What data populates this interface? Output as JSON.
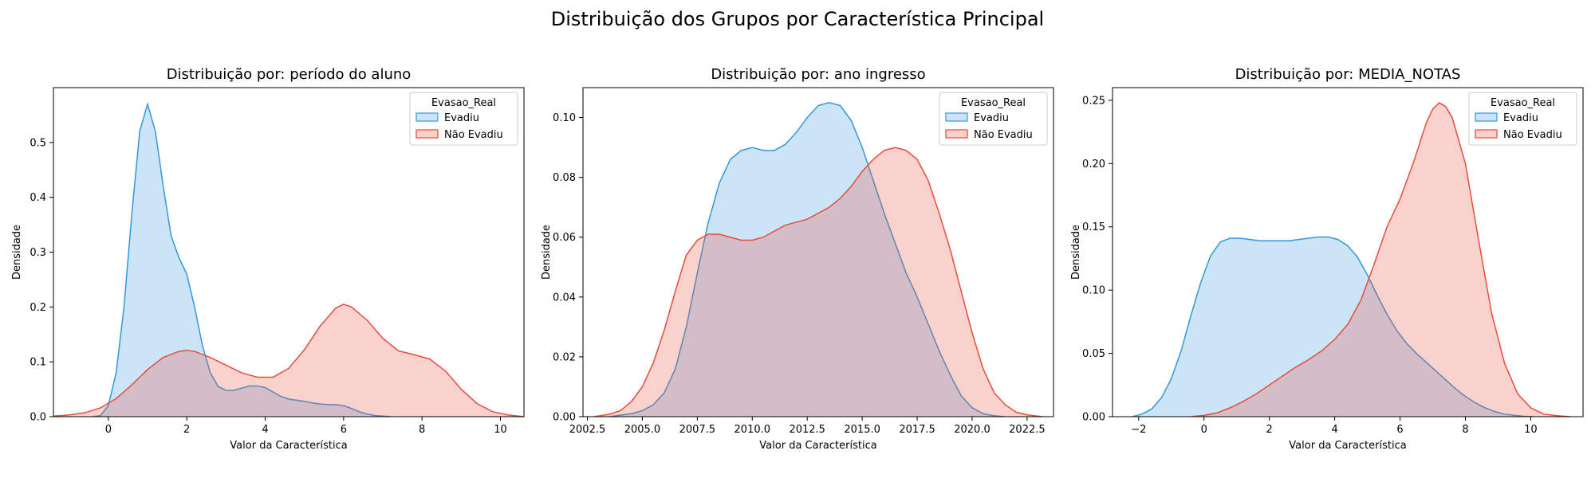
{
  "figure": {
    "suptitle": "Distribuição dos Grupos por Característica Principal",
    "colors": {
      "Evadiu": "#3498db",
      "Não Evadiu": "#e74c3c",
      "overlap": "#c3bfcc"
    }
  },
  "chart_data": [
    {
      "type": "area",
      "title": "Distribuição por: período do aluno",
      "xlabel": "Valor da Característica",
      "ylabel": "Densidade",
      "xlim": [
        -1.4,
        10.6
      ],
      "ylim": [
        0,
        0.6
      ],
      "xticks": [
        0,
        2,
        4,
        6,
        8,
        10
      ],
      "xtick_labels": [
        "0",
        "2",
        "4",
        "6",
        "8",
        "10"
      ],
      "yticks": [
        0,
        0.1,
        0.2,
        0.3,
        0.4,
        0.5
      ],
      "ytick_labels": [
        "0.0",
        "0.1",
        "0.2",
        "0.3",
        "0.4",
        "0.5"
      ],
      "legend": {
        "title": "Evasao_Real",
        "position": "upper right"
      },
      "series": [
        {
          "name": "Evadiu",
          "x": [
            -0.4,
            -0.2,
            0,
            0.2,
            0.4,
            0.6,
            0.8,
            1.0,
            1.2,
            1.4,
            1.6,
            1.8,
            2.0,
            2.2,
            2.4,
            2.6,
            2.8,
            3.0,
            3.2,
            3.4,
            3.6,
            3.8,
            4.0,
            4.2,
            4.4,
            4.6,
            4.8,
            5.0,
            5.2,
            5.4,
            5.6,
            5.8,
            6.0,
            6.2,
            6.4,
            6.6,
            6.8,
            7.0,
            7.2
          ],
          "y": [
            0.0,
            0.002,
            0.02,
            0.08,
            0.2,
            0.37,
            0.52,
            0.57,
            0.52,
            0.42,
            0.33,
            0.29,
            0.26,
            0.2,
            0.13,
            0.08,
            0.055,
            0.048,
            0.048,
            0.052,
            0.056,
            0.056,
            0.053,
            0.045,
            0.037,
            0.032,
            0.03,
            0.028,
            0.025,
            0.023,
            0.022,
            0.022,
            0.02,
            0.015,
            0.009,
            0.005,
            0.002,
            0.001,
            0.0
          ]
        },
        {
          "name": "Não Evadiu",
          "x": [
            -1.4,
            -1.0,
            -0.6,
            -0.2,
            0.2,
            0.6,
            1.0,
            1.4,
            1.8,
            2.0,
            2.2,
            2.6,
            3.0,
            3.4,
            3.8,
            4.2,
            4.6,
            5.0,
            5.4,
            5.8,
            6.0,
            6.2,
            6.6,
            7.0,
            7.4,
            7.8,
            8.2,
            8.6,
            9.0,
            9.4,
            9.8,
            10.2,
            10.6
          ],
          "y": [
            0.001,
            0.003,
            0.007,
            0.016,
            0.033,
            0.058,
            0.086,
            0.108,
            0.119,
            0.121,
            0.119,
            0.108,
            0.094,
            0.08,
            0.072,
            0.072,
            0.088,
            0.122,
            0.165,
            0.198,
            0.205,
            0.2,
            0.176,
            0.143,
            0.12,
            0.113,
            0.105,
            0.083,
            0.05,
            0.024,
            0.009,
            0.003,
            0.0
          ]
        }
      ]
    },
    {
      "type": "area",
      "title": "Distribuição por: ano ingresso",
      "xlabel": "Valor da Característica",
      "ylabel": "Densidade",
      "xlim": [
        2002.3,
        2023.7
      ],
      "ylim": [
        0,
        0.11
      ],
      "xticks": [
        2002.5,
        2005,
        2007.5,
        2010,
        2012.5,
        2015,
        2017.5,
        2020,
        2022.5
      ],
      "xtick_labels": [
        "2002.5",
        "2005.0",
        "2007.5",
        "2010.0",
        "2012.5",
        "2015.0",
        "2017.5",
        "2020.0",
        "2022.5"
      ],
      "yticks": [
        0,
        0.02,
        0.04,
        0.06,
        0.08,
        0.1
      ],
      "ytick_labels": [
        "0.00",
        "0.02",
        "0.04",
        "0.06",
        "0.08",
        "0.10"
      ],
      "legend": {
        "title": "Evasao_Real",
        "position": "upper right"
      },
      "series": [
        {
          "name": "Evadiu",
          "x": [
            2003.5,
            2004,
            2004.5,
            2005,
            2005.5,
            2006,
            2006.5,
            2007,
            2007.5,
            2008,
            2008.5,
            2009,
            2009.5,
            2010,
            2010.5,
            2011,
            2011.5,
            2012,
            2012.5,
            2013,
            2013.5,
            2014,
            2014.5,
            2015,
            2015.5,
            2016,
            2016.5,
            2017,
            2017.5,
            2018,
            2018.5,
            2019,
            2019.5,
            2020,
            2020.5,
            2021,
            2021.5
          ],
          "y": [
            0.0,
            0.0005,
            0.001,
            0.002,
            0.004,
            0.008,
            0.016,
            0.03,
            0.048,
            0.065,
            0.078,
            0.086,
            0.089,
            0.09,
            0.089,
            0.089,
            0.091,
            0.095,
            0.1,
            0.104,
            0.105,
            0.104,
            0.099,
            0.09,
            0.079,
            0.068,
            0.058,
            0.048,
            0.04,
            0.031,
            0.022,
            0.014,
            0.007,
            0.003,
            0.001,
            0.0003,
            0.0
          ]
        },
        {
          "name": "Não Evadiu",
          "x": [
            2002.8,
            2003.5,
            2004,
            2004.5,
            2005,
            2005.5,
            2006,
            2006.5,
            2007,
            2007.5,
            2008,
            2008.5,
            2009,
            2009.5,
            2010,
            2010.5,
            2011,
            2011.5,
            2012,
            2012.5,
            2013,
            2013.5,
            2014,
            2014.5,
            2015,
            2015.5,
            2016,
            2016.5,
            2017,
            2017.5,
            2018,
            2018.5,
            2019,
            2019.5,
            2020,
            2020.5,
            2021,
            2021.5,
            2022,
            2022.5,
            2023.2
          ],
          "y": [
            0.0,
            0.0008,
            0.002,
            0.005,
            0.01,
            0.018,
            0.029,
            0.042,
            0.054,
            0.059,
            0.061,
            0.061,
            0.06,
            0.059,
            0.059,
            0.06,
            0.062,
            0.064,
            0.065,
            0.066,
            0.068,
            0.07,
            0.073,
            0.077,
            0.082,
            0.086,
            0.089,
            0.09,
            0.089,
            0.086,
            0.079,
            0.068,
            0.056,
            0.042,
            0.028,
            0.016,
            0.008,
            0.004,
            0.0015,
            0.0006,
            0.0
          ]
        }
      ]
    },
    {
      "type": "area",
      "title": "Distribuição por: MEDIA_NOTAS",
      "xlabel": "Valor da Característica",
      "ylabel": "Densidade",
      "xlim": [
        -2.8,
        11.6
      ],
      "ylim": [
        0,
        0.26
      ],
      "xticks": [
        -2,
        0,
        2,
        4,
        6,
        8,
        10
      ],
      "xtick_labels": [
        "−2",
        "0",
        "2",
        "4",
        "6",
        "8",
        "10"
      ],
      "yticks": [
        0,
        0.05,
        0.1,
        0.15,
        0.2,
        0.25
      ],
      "ytick_labels": [
        "0.00",
        "0.05",
        "0.10",
        "0.15",
        "0.20",
        "0.25"
      ],
      "legend": {
        "title": "Evasao_Real",
        "position": "upper right"
      },
      "series": [
        {
          "name": "Evadiu",
          "x": [
            -2.2,
            -1.9,
            -1.6,
            -1.3,
            -1.0,
            -0.7,
            -0.4,
            -0.1,
            0.2,
            0.5,
            0.8,
            1.1,
            1.4,
            1.7,
            2.0,
            2.3,
            2.6,
            2.9,
            3.2,
            3.5,
            3.8,
            4.1,
            4.4,
            4.7,
            5.0,
            5.3,
            5.6,
            5.9,
            6.2,
            6.5,
            6.8,
            7.1,
            7.4,
            7.7,
            8.0,
            8.3,
            8.6,
            8.9,
            9.2,
            9.5,
            9.8,
            10.1
          ],
          "y": [
            0.0,
            0.002,
            0.006,
            0.015,
            0.03,
            0.052,
            0.08,
            0.106,
            0.127,
            0.138,
            0.141,
            0.141,
            0.14,
            0.139,
            0.139,
            0.139,
            0.139,
            0.14,
            0.141,
            0.142,
            0.142,
            0.14,
            0.135,
            0.126,
            0.112,
            0.096,
            0.081,
            0.068,
            0.058,
            0.05,
            0.043,
            0.036,
            0.029,
            0.022,
            0.016,
            0.011,
            0.007,
            0.004,
            0.002,
            0.001,
            0.0003,
            0.0
          ]
        },
        {
          "name": "Não Evadiu",
          "x": [
            -0.4,
            0,
            0.4,
            0.8,
            1.2,
            1.6,
            2.0,
            2.4,
            2.8,
            3.2,
            3.6,
            4.0,
            4.4,
            4.8,
            5.2,
            5.6,
            6.0,
            6.4,
            6.8,
            7.0,
            7.2,
            7.4,
            7.6,
            8.0,
            8.4,
            8.8,
            9.2,
            9.6,
            10.0,
            10.4,
            10.8,
            11.2
          ],
          "y": [
            0.0,
            0.001,
            0.003,
            0.007,
            0.012,
            0.018,
            0.025,
            0.032,
            0.039,
            0.045,
            0.052,
            0.061,
            0.073,
            0.092,
            0.12,
            0.15,
            0.172,
            0.2,
            0.232,
            0.243,
            0.248,
            0.245,
            0.236,
            0.2,
            0.14,
            0.082,
            0.042,
            0.018,
            0.007,
            0.002,
            0.0008,
            0.0
          ]
        }
      ]
    }
  ]
}
